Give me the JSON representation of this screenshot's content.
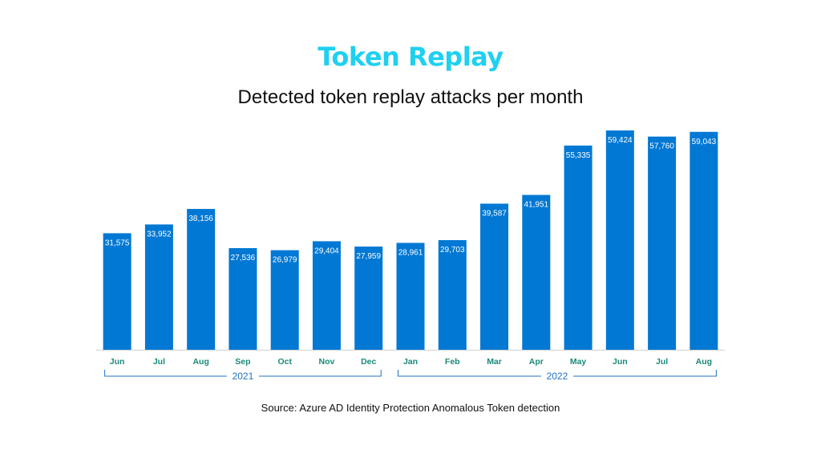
{
  "header": {
    "title": "Token Replay",
    "subtitle": "Detected token replay attacks per month"
  },
  "footer": {
    "source": "Source: Azure AD Identity Protection Anomalous Token detection"
  },
  "colors": {
    "title": "#1fd0f0",
    "bar": "#0078d4",
    "tick_label": "#1a8a7a",
    "group_label": "#1f73c4",
    "baseline": "#d0d0d0"
  },
  "chart_data": {
    "type": "bar",
    "title": "Token Replay",
    "subtitle": "Detected token replay attacks per month",
    "categories": [
      "Jun",
      "Jul",
      "Aug",
      "Sep",
      "Oct",
      "Nov",
      "Dec",
      "Jan",
      "Feb",
      "Mar",
      "Apr",
      "May",
      "Jun",
      "Jul",
      "Aug"
    ],
    "values": [
      31575,
      33952,
      38156,
      27536,
      26979,
      29404,
      27959,
      28961,
      29703,
      39587,
      41951,
      55335,
      59424,
      57760,
      59043
    ],
    "data_labels": [
      "31,575",
      "33,952",
      "38,156",
      "27,536",
      "26,979",
      "29,404",
      "27,959",
      "28,961",
      "29,703",
      "39,587",
      "41,951",
      "55,335",
      "59,424",
      "57,760",
      "59,043"
    ],
    "groups": [
      {
        "label": "2021",
        "start": 0,
        "end": 6
      },
      {
        "label": "2022",
        "start": 7,
        "end": 14
      }
    ],
    "ylim": [
      0,
      59424
    ],
    "grid": false,
    "legend": "none"
  }
}
